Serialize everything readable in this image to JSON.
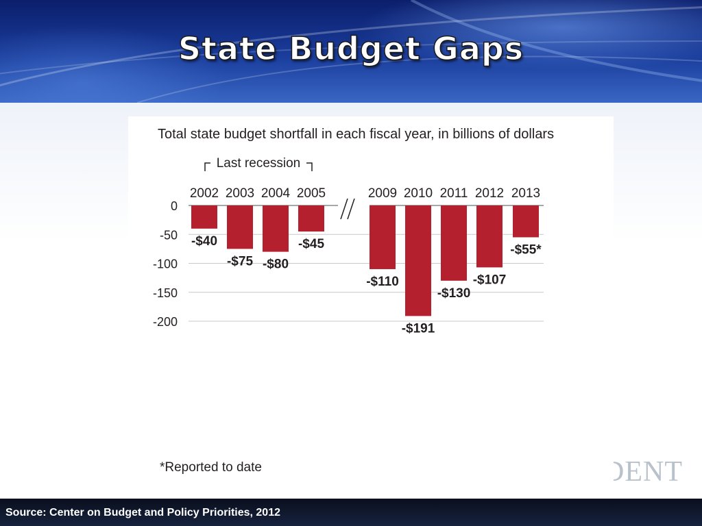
{
  "slide": {
    "title": "State Budget Gaps",
    "source": "Source: Center on Budget and Policy Priorities, 2012",
    "watermark": "DENT"
  },
  "colors": {
    "bar": "#b5202e",
    "grid": "#c8c8c8",
    "text": "#231f20",
    "header": "#1a3d9c",
    "footer": "#0f1628"
  },
  "chart_data": {
    "type": "bar",
    "title": "Total state budget shortfall in each fiscal year, in billions of dollars",
    "annotation": "Last recession",
    "footnote": "*Reported to date",
    "categories": [
      "2002",
      "2003",
      "2004",
      "2005",
      "2009",
      "2010",
      "2011",
      "2012",
      "2013"
    ],
    "values": [
      -40,
      -75,
      -80,
      -45,
      -110,
      -191,
      -130,
      -107,
      -55
    ],
    "data_labels": [
      "-$40",
      "-$75",
      "-$80",
      "-$45",
      "-$110",
      "-$191",
      "-$130",
      "-$107",
      "-$55*"
    ],
    "y_ticks": [
      0,
      -50,
      -100,
      -150,
      -200
    ],
    "y_tick_labels": [
      "0",
      "-50",
      "-100",
      "-150",
      "-200"
    ],
    "ylim": [
      -200,
      0
    ],
    "axis_break": "between 2005 and 2009",
    "grid": true,
    "xlabel": "",
    "ylabel": ""
  }
}
